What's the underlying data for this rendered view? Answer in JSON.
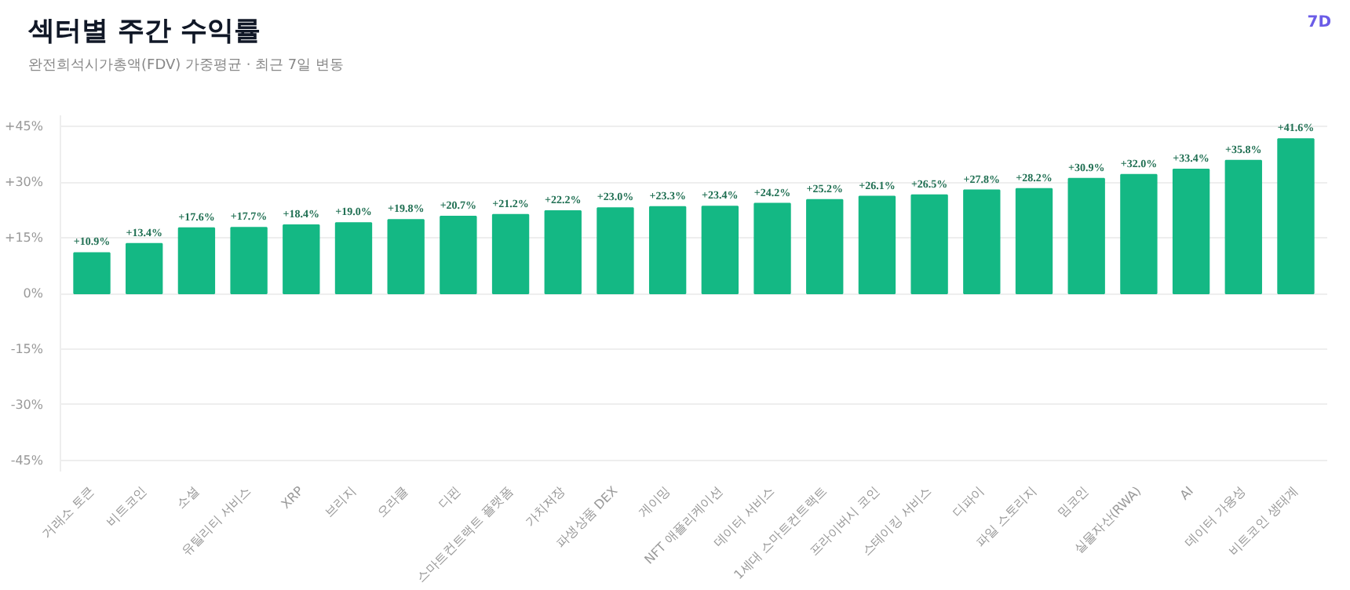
{
  "chart_data": {
    "type": "bar",
    "title": "섹터별 주간 수익률",
    "subtitle": "완전희석시가총액(FDV) 가중평균 · 최근 7일 변동",
    "annotations": [
      "7D"
    ],
    "categories": [
      "거래소 토큰",
      "비트코인",
      "소셜",
      "유틸리티 서비스",
      "XRP",
      "브리지",
      "오라클",
      "디핀",
      "스마트컨트랙트 플랫폼",
      "가치저장",
      "파생상품 DEX",
      "게이밍",
      "NFT 애플리케이션",
      "데이터 서비스",
      "1세대 스마트컨트랙트",
      "프라이버시 코인",
      "스테이킹 서비스",
      "디파이",
      "파일 스토리지",
      "밈코인",
      "실물자산(RWA)",
      "AI",
      "데이터 가용성",
      "비트코인 생태계"
    ],
    "values": [
      10.9,
      13.4,
      17.6,
      17.7,
      18.4,
      19.0,
      19.8,
      20.7,
      21.2,
      22.2,
      23.0,
      23.3,
      23.4,
      24.2,
      25.2,
      26.1,
      26.5,
      27.8,
      28.2,
      30.9,
      32.0,
      33.4,
      35.8,
      41.6
    ],
    "value_labels": [
      "+10.9%",
      "+13.4%",
      "+17.6%",
      "+17.7%",
      "+18.4%",
      "+19.0%",
      "+19.8%",
      "+20.7%",
      "+21.2%",
      "+22.2%",
      "+23.0%",
      "+23.3%",
      "+23.4%",
      "+24.2%",
      "+25.2%",
      "+26.1%",
      "+26.5%",
      "+27.8%",
      "+28.2%",
      "+30.9%",
      "+32.0%",
      "+33.4%",
      "+35.8%",
      "+41.6%"
    ],
    "color": "#14b884",
    "ylim": [
      -48,
      48
    ],
    "yticks": [
      {
        "value": -45,
        "label": "-45%"
      },
      {
        "value": -30,
        "label": "-30%"
      },
      {
        "value": -15,
        "label": "-15%"
      },
      {
        "value": 0,
        "label": "0%"
      },
      {
        "value": 15,
        "label": "+15%"
      },
      {
        "value": 30,
        "label": "+30%"
      },
      {
        "value": 45,
        "label": "+45%"
      }
    ],
    "grid": "y"
  }
}
